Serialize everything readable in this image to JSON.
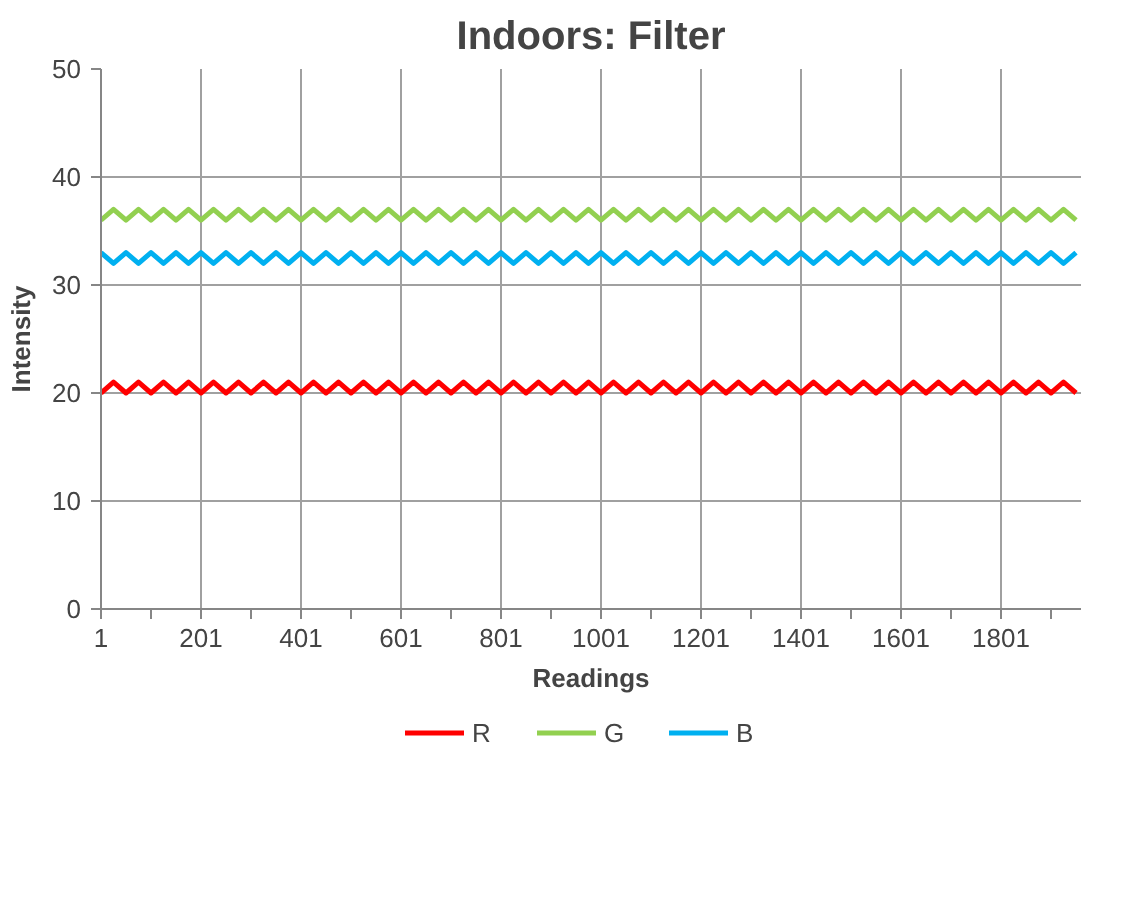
{
  "chart_data": {
    "type": "line",
    "title": "Indoors: Filter",
    "xlabel": "Readings",
    "ylabel": "Intensity",
    "x": [
      1,
      26,
      51,
      76,
      101,
      126,
      151,
      176,
      201,
      226,
      251,
      276,
      301,
      326,
      351,
      376,
      401,
      426,
      451,
      476,
      501,
      526,
      551,
      576,
      601,
      626,
      651,
      676,
      701,
      726,
      751,
      776,
      801,
      826,
      851,
      876,
      901,
      926,
      951,
      976,
      1001,
      1026,
      1051,
      1076,
      1101,
      1126,
      1151,
      1176,
      1201,
      1226,
      1251,
      1276,
      1301,
      1326,
      1351,
      1376,
      1401,
      1426,
      1451,
      1476,
      1501,
      1526,
      1551,
      1576,
      1601,
      1626,
      1651,
      1676,
      1701,
      1726,
      1751,
      1776,
      1801,
      1826,
      1851,
      1876,
      1901,
      1926,
      1951
    ],
    "series": [
      {
        "name": "R",
        "color": "#ff0000",
        "values": [
          20,
          21,
          20,
          21,
          20,
          21,
          20,
          21,
          20,
          21,
          20,
          21,
          20,
          21,
          20,
          21,
          20,
          21,
          20,
          21,
          20,
          21,
          20,
          21,
          20,
          21,
          20,
          21,
          20,
          21,
          20,
          21,
          20,
          21,
          20,
          21,
          20,
          21,
          20,
          21,
          20,
          21,
          20,
          21,
          20,
          21,
          20,
          21,
          20,
          21,
          20,
          21,
          20,
          21,
          20,
          21,
          20,
          21,
          20,
          21,
          20,
          21,
          20,
          21,
          20,
          21,
          20,
          21,
          20,
          21,
          20,
          21,
          20,
          21,
          20,
          21,
          20,
          21,
          20
        ]
      },
      {
        "name": "G",
        "color": "#92d050",
        "values": [
          36,
          37,
          36,
          37,
          36,
          37,
          36,
          37,
          36,
          37,
          36,
          37,
          36,
          37,
          36,
          37,
          36,
          37,
          36,
          37,
          36,
          37,
          36,
          37,
          36,
          37,
          36,
          37,
          36,
          37,
          36,
          37,
          36,
          37,
          36,
          37,
          36,
          37,
          36,
          37,
          36,
          37,
          36,
          37,
          36,
          37,
          36,
          37,
          36,
          37,
          36,
          37,
          36,
          37,
          36,
          37,
          36,
          37,
          36,
          37,
          36,
          37,
          36,
          37,
          36,
          37,
          36,
          37,
          36,
          37,
          36,
          37,
          36,
          37,
          36,
          37,
          36,
          37,
          36
        ]
      },
      {
        "name": "B",
        "color": "#00b0f0",
        "values": [
          33,
          32,
          33,
          32,
          33,
          32,
          33,
          32,
          33,
          32,
          33,
          32,
          33,
          32,
          33,
          32,
          33,
          32,
          33,
          32,
          33,
          32,
          33,
          32,
          33,
          32,
          33,
          32,
          33,
          32,
          33,
          32,
          33,
          32,
          33,
          32,
          33,
          32,
          33,
          32,
          33,
          32,
          33,
          32,
          33,
          32,
          33,
          32,
          33,
          32,
          33,
          32,
          33,
          32,
          33,
          32,
          33,
          32,
          33,
          32,
          33,
          32,
          33,
          32,
          33,
          32,
          33,
          32,
          33,
          32,
          33,
          32,
          33,
          32,
          33,
          32,
          33,
          32,
          33
        ]
      }
    ],
    "xlim": [
      1,
      1961
    ],
    "xticks": [
      1,
      {
        "value": 101,
        "label": null
      },
      201,
      {
        "value": 301,
        "label": null
      },
      401,
      {
        "value": 501,
        "label": null
      },
      601,
      {
        "value": 701,
        "label": null
      },
      801,
      {
        "value": 901,
        "label": null
      },
      1001,
      {
        "value": 1101,
        "label": null
      },
      1201,
      {
        "value": 1301,
        "label": null
      },
      1401,
      {
        "value": 1501,
        "label": null
      },
      1601,
      {
        "value": 1701,
        "label": null
      },
      1801,
      {
        "value": 1901,
        "label": null
      }
    ],
    "ylim": [
      0,
      50
    ],
    "yticks": [
      0,
      10,
      20,
      30,
      40,
      50
    ],
    "grid": true,
    "legend": "bottom",
    "marker": "none",
    "line_style": "solid"
  }
}
